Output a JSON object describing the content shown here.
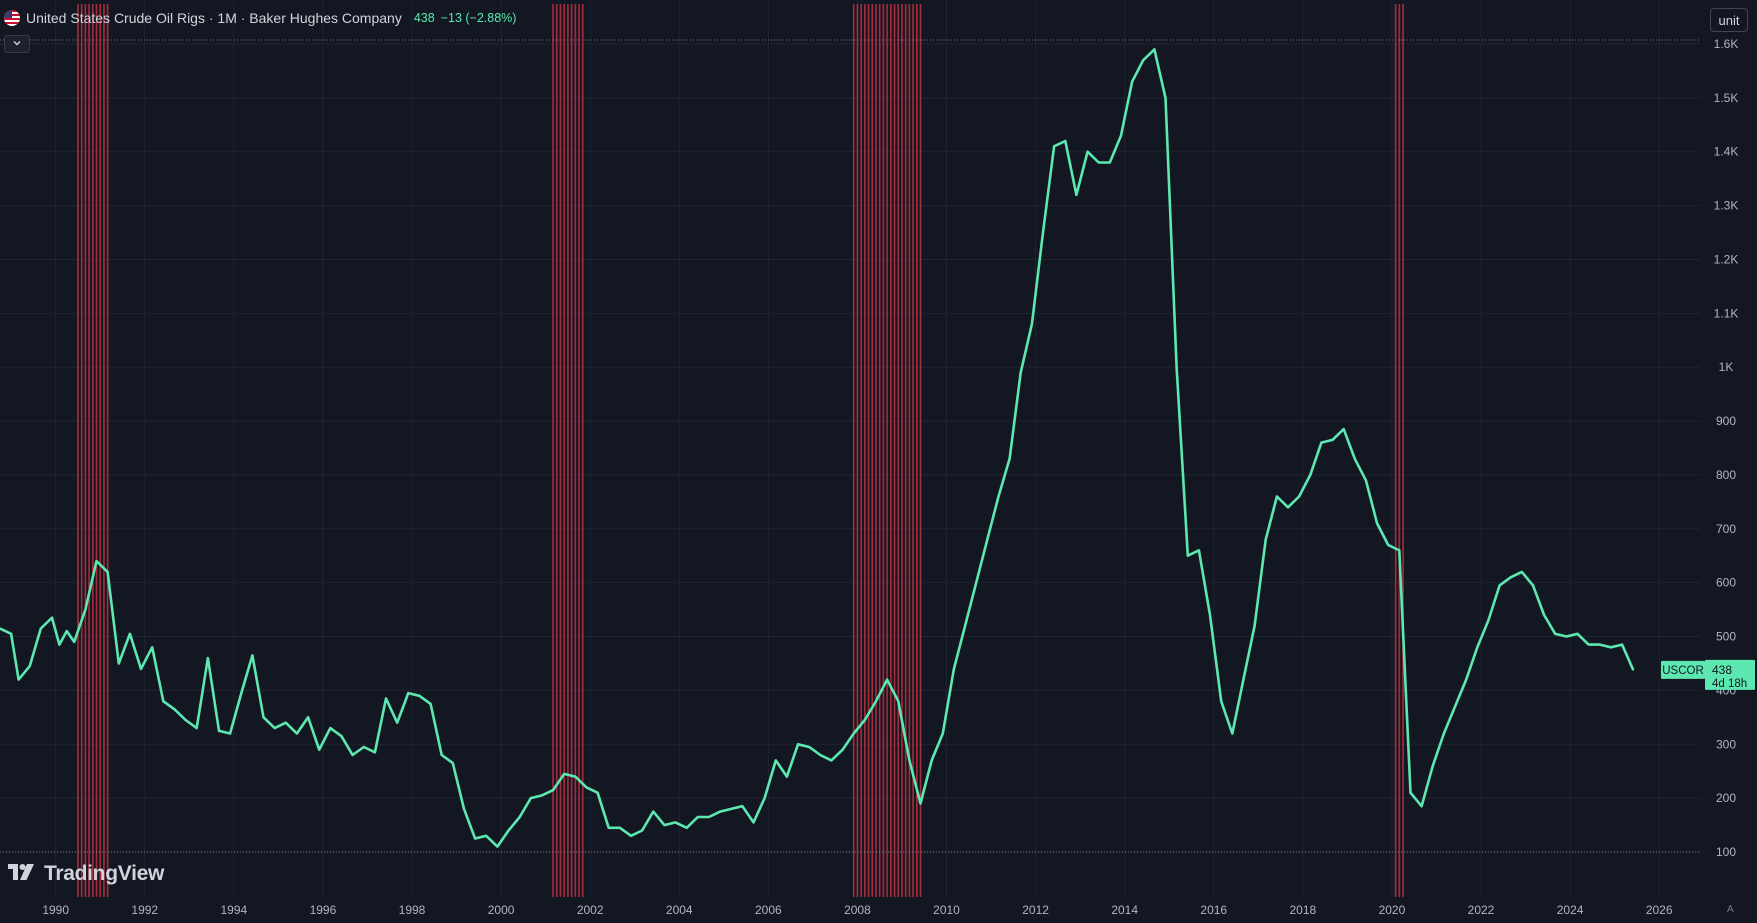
{
  "header": {
    "title": "United States Crude Oil Rigs · 1M · Baker Hughes Company",
    "value": "438",
    "change": "−13 (−2.88%)"
  },
  "toolbar": {
    "unit_label": "unit",
    "auto_label": "A"
  },
  "branding": {
    "logo_text": "TradingView"
  },
  "last_value": {
    "ticker_label": "USCOR",
    "value": "438",
    "countdown": "4d 18h"
  },
  "colors": {
    "background": "#131722",
    "line": "#5ce8b0",
    "recession": "#c2303f",
    "grid": "#1f2430",
    "text": "#b2b5be"
  },
  "chart_data": {
    "type": "line",
    "xlabel": "",
    "ylabel": "",
    "xlim": [
      "1988-10",
      "2026-12"
    ],
    "ylim": [
      80,
      1620
    ],
    "grid": true,
    "y_ticks": [
      100,
      200,
      300,
      400,
      500,
      600,
      700,
      800,
      900,
      1000,
      1100,
      1200,
      1300,
      1400,
      1500,
      1600
    ],
    "y_tick_labels": [
      "100",
      "200",
      "300",
      "400",
      "500",
      "600",
      "700",
      "800",
      "900",
      "1K",
      "1.1K",
      "1.2K",
      "1.3K",
      "1.4K",
      "1.5K",
      "1.6K"
    ],
    "x_ticks": [
      "1990",
      "1992",
      "1994",
      "1996",
      "1998",
      "2000",
      "2002",
      "2004",
      "2006",
      "2008",
      "2010",
      "2012",
      "2014",
      "2016",
      "2018",
      "2020",
      "2022",
      "2024",
      "2026"
    ],
    "recession_bands": [
      {
        "start": "1990-07",
        "end": "1991-03"
      },
      {
        "start": "2001-03",
        "end": "2001-11"
      },
      {
        "start": "2007-12",
        "end": "2009-06"
      },
      {
        "start": "2020-02",
        "end": "2020-04"
      }
    ],
    "series": [
      {
        "values": [
          [
            "1988-10",
            515
          ],
          [
            "1989-01",
            505
          ],
          [
            "1989-03",
            420
          ],
          [
            "1989-06",
            445
          ],
          [
            "1989-09",
            515
          ],
          [
            "1989-12",
            535
          ],
          [
            "1990-02",
            485
          ],
          [
            "1990-04",
            510
          ],
          [
            "1990-06",
            490
          ],
          [
            "1990-09",
            550
          ],
          [
            "1990-12",
            640
          ],
          [
            "1991-03",
            620
          ],
          [
            "1991-06",
            450
          ],
          [
            "1991-09",
            505
          ],
          [
            "1991-12",
            440
          ],
          [
            "1992-03",
            480
          ],
          [
            "1992-06",
            380
          ],
          [
            "1992-09",
            365
          ],
          [
            "1992-12",
            345
          ],
          [
            "1993-03",
            330
          ],
          [
            "1993-06",
            460
          ],
          [
            "1993-09",
            325
          ],
          [
            "1993-12",
            320
          ],
          [
            "1994-03",
            395
          ],
          [
            "1994-06",
            465
          ],
          [
            "1994-09",
            350
          ],
          [
            "1994-12",
            330
          ],
          [
            "1995-03",
            340
          ],
          [
            "1995-06",
            320
          ],
          [
            "1995-09",
            350
          ],
          [
            "1995-12",
            290
          ],
          [
            "1996-03",
            330
          ],
          [
            "1996-06",
            315
          ],
          [
            "1996-09",
            280
          ],
          [
            "1996-12",
            295
          ],
          [
            "1997-03",
            285
          ],
          [
            "1997-06",
            385
          ],
          [
            "1997-09",
            340
          ],
          [
            "1997-12",
            395
          ],
          [
            "1998-03",
            390
          ],
          [
            "1998-06",
            375
          ],
          [
            "1998-09",
            280
          ],
          [
            "1998-12",
            265
          ],
          [
            "1999-03",
            180
          ],
          [
            "1999-06",
            125
          ],
          [
            "1999-09",
            130
          ],
          [
            "1999-12",
            110
          ],
          [
            "2000-03",
            140
          ],
          [
            "2000-06",
            165
          ],
          [
            "2000-09",
            200
          ],
          [
            "2000-12",
            205
          ],
          [
            "2001-03",
            215
          ],
          [
            "2001-06",
            245
          ],
          [
            "2001-09",
            240
          ],
          [
            "2001-12",
            220
          ],
          [
            "2002-03",
            210
          ],
          [
            "2002-06",
            145
          ],
          [
            "2002-09",
            145
          ],
          [
            "2002-12",
            130
          ],
          [
            "2003-03",
            140
          ],
          [
            "2003-06",
            175
          ],
          [
            "2003-09",
            150
          ],
          [
            "2003-12",
            155
          ],
          [
            "2004-03",
            145
          ],
          [
            "2004-06",
            165
          ],
          [
            "2004-09",
            165
          ],
          [
            "2004-12",
            175
          ],
          [
            "2005-03",
            180
          ],
          [
            "2005-06",
            185
          ],
          [
            "2005-09",
            155
          ],
          [
            "2005-12",
            200
          ],
          [
            "2006-03",
            270
          ],
          [
            "2006-06",
            240
          ],
          [
            "2006-09",
            300
          ],
          [
            "2006-12",
            295
          ],
          [
            "2007-03",
            280
          ],
          [
            "2007-06",
            270
          ],
          [
            "2007-09",
            290
          ],
          [
            "2007-12",
            320
          ],
          [
            "2008-03",
            345
          ],
          [
            "2008-06",
            380
          ],
          [
            "2008-09",
            420
          ],
          [
            "2008-12",
            380
          ],
          [
            "2009-03",
            270
          ],
          [
            "2009-06",
            190
          ],
          [
            "2009-09",
            270
          ],
          [
            "2009-12",
            320
          ],
          [
            "2010-03",
            440
          ],
          [
            "2010-06",
            520
          ],
          [
            "2010-09",
            600
          ],
          [
            "2010-12",
            680
          ],
          [
            "2011-03",
            760
          ],
          [
            "2011-06",
            830
          ],
          [
            "2011-09",
            990
          ],
          [
            "2011-12",
            1080
          ],
          [
            "2012-03",
            1250
          ],
          [
            "2012-06",
            1410
          ],
          [
            "2012-09",
            1420
          ],
          [
            "2012-12",
            1320
          ],
          [
            "2013-03",
            1400
          ],
          [
            "2013-06",
            1380
          ],
          [
            "2013-09",
            1380
          ],
          [
            "2013-12",
            1430
          ],
          [
            "2014-03",
            1530
          ],
          [
            "2014-06",
            1570
          ],
          [
            "2014-09",
            1590
          ],
          [
            "2014-12",
            1500
          ],
          [
            "2015-03",
            1000
          ],
          [
            "2015-06",
            650
          ],
          [
            "2015-09",
            660
          ],
          [
            "2015-12",
            540
          ],
          [
            "2016-03",
            380
          ],
          [
            "2016-06",
            320
          ],
          [
            "2016-09",
            420
          ],
          [
            "2016-12",
            520
          ],
          [
            "2017-03",
            680
          ],
          [
            "2017-06",
            760
          ],
          [
            "2017-09",
            740
          ],
          [
            "2017-12",
            760
          ],
          [
            "2018-03",
            800
          ],
          [
            "2018-06",
            860
          ],
          [
            "2018-09",
            865
          ],
          [
            "2018-12",
            885
          ],
          [
            "2019-03",
            830
          ],
          [
            "2019-06",
            790
          ],
          [
            "2019-09",
            710
          ],
          [
            "2019-12",
            670
          ],
          [
            "2020-03",
            660
          ],
          [
            "2020-06",
            210
          ],
          [
            "2020-09",
            185
          ],
          [
            "2020-12",
            260
          ],
          [
            "2021-03",
            320
          ],
          [
            "2021-06",
            370
          ],
          [
            "2021-09",
            420
          ],
          [
            "2021-12",
            480
          ],
          [
            "2022-03",
            530
          ],
          [
            "2022-06",
            595
          ],
          [
            "2022-09",
            610
          ],
          [
            "2022-12",
            620
          ],
          [
            "2023-03",
            595
          ],
          [
            "2023-06",
            540
          ],
          [
            "2023-09",
            505
          ],
          [
            "2023-12",
            500
          ],
          [
            "2024-03",
            505
          ],
          [
            "2024-06",
            485
          ],
          [
            "2024-09",
            485
          ],
          [
            "2024-12",
            480
          ],
          [
            "2025-03",
            485
          ],
          [
            "2025-06",
            438
          ]
        ]
      }
    ]
  }
}
